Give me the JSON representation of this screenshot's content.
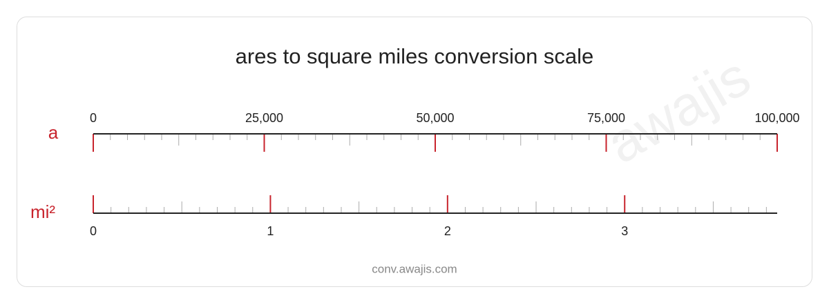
{
  "title": "ares to square miles conversion scale",
  "watermark": "awajis",
  "footer": "conv.awajis.com",
  "scales": [
    {
      "unit": "a",
      "side": "top",
      "xlim": [
        0,
        100000
      ],
      "ticks": [
        0,
        {
          "value": 25000,
          "label": "25,000"
        },
        {
          "value": 50000,
          "label": "50,000"
        },
        {
          "value": 75000,
          "label": "75,000"
        },
        {
          "value": 100000,
          "label": "100,000"
        }
      ]
    },
    {
      "unit": "mi²",
      "side": "bottom",
      "xlim": [
        0,
        3.861
      ],
      "ticks": [
        0,
        1,
        2,
        3
      ]
    }
  ]
}
